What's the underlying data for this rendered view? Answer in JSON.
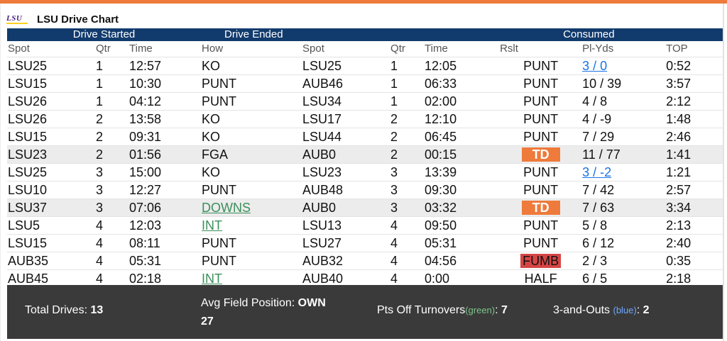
{
  "app": {
    "title": "LSU Drive Chart",
    "logo_text": "LSU"
  },
  "groups": {
    "started": "Drive Started",
    "ended": "Drive Ended",
    "consumed": "Consumed"
  },
  "columns": [
    "Spot",
    "Qtr",
    "Time",
    "How",
    "Spot",
    "Qtr",
    "Time",
    "Rslt",
    "Pl-Yds",
    "TOP"
  ],
  "drives": [
    {
      "spot1": "LSU25",
      "qtr1": "1",
      "time1": "12:57",
      "how": "KO",
      "spot2": "LSU25",
      "qtr2": "1",
      "time2": "12:05",
      "rslt": "PUNT",
      "plyds": "3 / 0",
      "top": "0:52"
    },
    {
      "spot1": "LSU15",
      "qtr1": "1",
      "time1": "10:30",
      "how": "PUNT",
      "spot2": "AUB46",
      "qtr2": "1",
      "time2": "06:33",
      "rslt": "PUNT",
      "plyds": "10 / 39",
      "top": "3:57"
    },
    {
      "spot1": "LSU26",
      "qtr1": "1",
      "time1": "04:12",
      "how": "PUNT",
      "spot2": "LSU34",
      "qtr2": "1",
      "time2": "02:00",
      "rslt": "PUNT",
      "plyds": "4 / 8",
      "top": "2:12"
    },
    {
      "spot1": "LSU26",
      "qtr1": "2",
      "time1": "13:58",
      "how": "KO",
      "spot2": "LSU17",
      "qtr2": "2",
      "time2": "12:10",
      "rslt": "PUNT",
      "plyds": "4 / -9",
      "top": "1:48"
    },
    {
      "spot1": "LSU15",
      "qtr1": "2",
      "time1": "09:31",
      "how": "KO",
      "spot2": "LSU44",
      "qtr2": "2",
      "time2": "06:45",
      "rslt": "PUNT",
      "plyds": "7 / 29",
      "top": "2:46"
    },
    {
      "spot1": "LSU23",
      "qtr1": "2",
      "time1": "01:56",
      "how": "FGA",
      "spot2": "AUB0",
      "qtr2": "2",
      "time2": "00:15",
      "rslt": "TD",
      "plyds": "11 / 77",
      "top": "1:41"
    },
    {
      "spot1": "LSU25",
      "qtr1": "3",
      "time1": "15:00",
      "how": "KO",
      "spot2": "LSU23",
      "qtr2": "3",
      "time2": "13:39",
      "rslt": "PUNT",
      "plyds": "3 / -2",
      "top": "1:21"
    },
    {
      "spot1": "LSU10",
      "qtr1": "3",
      "time1": "12:27",
      "how": "PUNT",
      "spot2": "AUB48",
      "qtr2": "3",
      "time2": "09:30",
      "rslt": "PUNT",
      "plyds": "7 / 42",
      "top": "2:57"
    },
    {
      "spot1": "LSU37",
      "qtr1": "3",
      "time1": "07:06",
      "how": "DOWNS",
      "spot2": "AUB0",
      "qtr2": "3",
      "time2": "03:32",
      "rslt": "TD",
      "plyds": "7 / 63",
      "top": "3:34"
    },
    {
      "spot1": "LSU5",
      "qtr1": "4",
      "time1": "12:03",
      "how": "INT",
      "spot2": "LSU13",
      "qtr2": "4",
      "time2": "09:50",
      "rslt": "PUNT",
      "plyds": "5 / 8",
      "top": "2:13"
    },
    {
      "spot1": "LSU15",
      "qtr1": "4",
      "time1": "08:11",
      "how": "PUNT",
      "spot2": "LSU27",
      "qtr2": "4",
      "time2": "05:31",
      "rslt": "PUNT",
      "plyds": "6 / 12",
      "top": "2:40"
    },
    {
      "spot1": "AUB35",
      "qtr1": "4",
      "time1": "05:31",
      "how": "PUNT",
      "spot2": "AUB32",
      "qtr2": "4",
      "time2": "04:56",
      "rslt": "FUMB",
      "plyds": "2 / 3",
      "top": "0:35"
    },
    {
      "spot1": "AUB45",
      "qtr1": "4",
      "time1": "02:18",
      "how": "INT",
      "spot2": "AUB40",
      "qtr2": "4",
      "time2": "0:00",
      "rslt": "HALF",
      "plyds": "6 / 5",
      "top": "2:18"
    }
  ],
  "summary": {
    "total_label": "Total Drives: ",
    "total_value": "13",
    "avg_label": "Avg Field Position: ",
    "avg_value_1": "OWN",
    "avg_value_2": "27",
    "pts_label": "Pts Off Turnovers",
    "pts_note": "(green)",
    "pts_value": "7",
    "three_label": "3-and-Outs ",
    "three_note": "(blue)",
    "three_value": "2"
  },
  "colors": {
    "accent": "#ee7a3b",
    "header_bg": "#123b6d",
    "td_badge": "#ee7a3b",
    "fumb_badge": "#d64545",
    "link_blue": "#1a73e8",
    "link_green": "#3a8f5a"
  }
}
